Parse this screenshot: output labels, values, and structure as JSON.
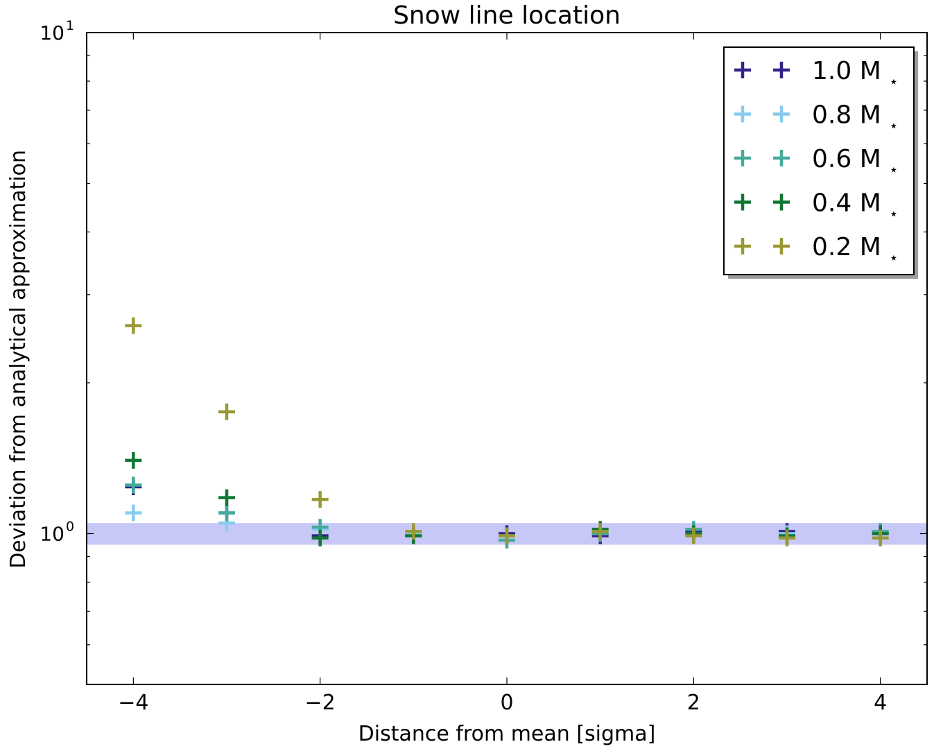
{
  "chart_data": {
    "type": "scatter",
    "title": "Snow line location",
    "xlabel": "Distance from mean [sigma]",
    "ylabel": "Deviation from analytical approximation",
    "y_scale": "log",
    "xlim": [
      -4.5,
      4.5
    ],
    "ylim": [
      0.5,
      10
    ],
    "x_ticks": [
      -4,
      -2,
      0,
      2,
      4
    ],
    "x_tick_labels": [
      "−4",
      "−2",
      "0",
      "2",
      "4"
    ],
    "y_ticks": [
      1,
      10
    ],
    "y_tick_labels": [
      {
        "base": "10",
        "exp": "0"
      },
      {
        "base": "10",
        "exp": "1"
      }
    ],
    "grid": false,
    "legend_position": "top-right",
    "marker": "+",
    "band": {
      "y_low": 0.95,
      "y_high": 1.05,
      "color": "#c8c8f8"
    },
    "series": [
      {
        "name": "1.0 M",
        "name_sub": "⋆",
        "color": "#332288",
        "x": [
          -4,
          -3,
          -2,
          -1,
          0,
          1,
          2,
          3,
          4
        ],
        "y": [
          1.24,
          1.1,
          0.99,
          0.99,
          1.0,
          0.99,
          1.01,
          1.01,
          1.0
        ]
      },
      {
        "name": "0.8 M",
        "name_sub": "⋆",
        "color": "#88ccee",
        "x": [
          -4,
          -3,
          -2,
          -1,
          0,
          1,
          2,
          3,
          4
        ],
        "y": [
          1.1,
          1.05,
          1.02,
          1.0,
          0.99,
          1.0,
          1.0,
          1.0,
          1.01
        ]
      },
      {
        "name": "0.6 M",
        "name_sub": "⋆",
        "color": "#44aa99",
        "x": [
          -4,
          -3,
          -2,
          -1,
          0,
          1,
          2,
          3,
          4
        ],
        "y": [
          1.25,
          1.1,
          1.03,
          0.99,
          0.97,
          1.0,
          1.02,
          0.99,
          1.01
        ]
      },
      {
        "name": "0.4 M",
        "name_sub": "⋆",
        "color": "#117733",
        "x": [
          -4,
          -3,
          -2,
          -1,
          0,
          1,
          2,
          3,
          4
        ],
        "y": [
          1.4,
          1.18,
          0.98,
          0.99,
          0.99,
          1.02,
          1.0,
          0.99,
          1.0
        ]
      },
      {
        "name": "0.2 M",
        "name_sub": "⋆",
        "color": "#999933",
        "x": [
          -4,
          -3,
          -2,
          -1,
          0,
          1,
          2,
          3,
          4
        ],
        "y": [
          2.6,
          1.75,
          1.17,
          1.01,
          0.99,
          1.01,
          0.99,
          0.98,
          0.98
        ]
      }
    ]
  }
}
